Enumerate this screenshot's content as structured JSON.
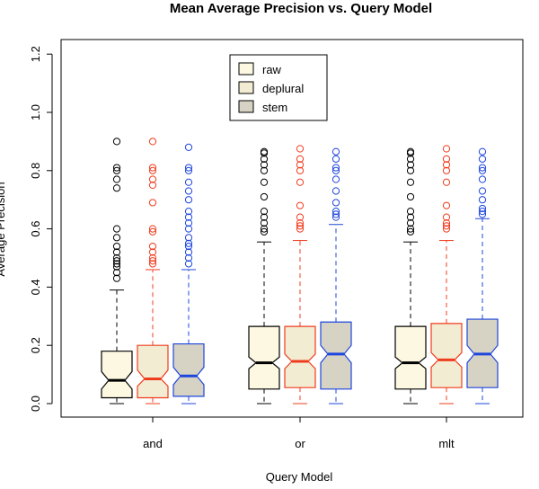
{
  "chart_data": {
    "type": "boxplot",
    "title": "Mean Average Precision vs. Query Model",
    "xlabel": "Query Model",
    "ylabel": "Average Precision",
    "ylim": [
      -0.02,
      1.25
    ],
    "yticks": [
      0.0,
      0.2,
      0.4,
      0.6,
      0.8,
      1.0,
      1.2
    ],
    "ytick_labels": [
      "0.0",
      "0.2",
      "0.4",
      "0.6",
      "0.8",
      "1.0",
      "1.2"
    ],
    "categories": [
      "and",
      "or",
      "mlt"
    ],
    "notched": true,
    "legend": {
      "placement": "top-center",
      "entries": [
        "raw",
        "deplural",
        "stem"
      ]
    },
    "series": [
      {
        "name": "raw",
        "fill": "#fdf8e1",
        "border": "#000000",
        "boxes": [
          {
            "min": 0.0,
            "q1": 0.02,
            "median": 0.08,
            "q3": 0.18,
            "whisker_high": 0.39,
            "notch_low": 0.05,
            "notch_high": 0.11,
            "outliers": [
              0.43,
              0.45,
              0.47,
              0.48,
              0.49,
              0.5,
              0.52,
              0.54,
              0.57,
              0.6,
              0.74,
              0.77,
              0.8,
              0.81,
              0.9
            ]
          },
          {
            "min": 0.0,
            "q1": 0.05,
            "median": 0.14,
            "q3": 0.265,
            "whisker_high": 0.555,
            "notch_low": 0.12,
            "notch_high": 0.16,
            "outliers": [
              0.59,
              0.6,
              0.62,
              0.64,
              0.66,
              0.71,
              0.76,
              0.8,
              0.82,
              0.84,
              0.86,
              0.865
            ]
          },
          {
            "min": 0.0,
            "q1": 0.05,
            "median": 0.14,
            "q3": 0.265,
            "whisker_high": 0.555,
            "notch_low": 0.12,
            "notch_high": 0.16,
            "outliers": [
              0.59,
              0.6,
              0.62,
              0.64,
              0.66,
              0.71,
              0.76,
              0.8,
              0.82,
              0.84,
              0.86,
              0.865
            ]
          }
        ]
      },
      {
        "name": "deplural",
        "fill": "#f2ecd2",
        "border": "#f03c1e",
        "boxes": [
          {
            "min": 0.0,
            "q1": 0.02,
            "median": 0.085,
            "q3": 0.2,
            "whisker_high": 0.46,
            "notch_low": 0.06,
            "notch_high": 0.115,
            "outliers": [
              0.48,
              0.49,
              0.5,
              0.52,
              0.54,
              0.59,
              0.6,
              0.69,
              0.75,
              0.77,
              0.8,
              0.81,
              0.9
            ]
          },
          {
            "min": 0.0,
            "q1": 0.055,
            "median": 0.145,
            "q3": 0.265,
            "whisker_high": 0.56,
            "notch_low": 0.12,
            "notch_high": 0.17,
            "outliers": [
              0.6,
              0.61,
              0.62,
              0.64,
              0.68,
              0.76,
              0.8,
              0.82,
              0.84,
              0.875
            ]
          },
          {
            "min": 0.0,
            "q1": 0.055,
            "median": 0.15,
            "q3": 0.275,
            "whisker_high": 0.56,
            "notch_low": 0.125,
            "notch_high": 0.175,
            "outliers": [
              0.6,
              0.61,
              0.62,
              0.64,
              0.68,
              0.76,
              0.8,
              0.82,
              0.84,
              0.875
            ]
          }
        ]
      },
      {
        "name": "stem",
        "fill": "#d6d2c4",
        "border": "#1e46dc",
        "boxes": [
          {
            "min": 0.0,
            "q1": 0.025,
            "median": 0.095,
            "q3": 0.205,
            "whisker_high": 0.46,
            "notch_low": 0.065,
            "notch_high": 0.125,
            "outliers": [
              0.48,
              0.5,
              0.52,
              0.54,
              0.55,
              0.57,
              0.6,
              0.62,
              0.64,
              0.66,
              0.7,
              0.73,
              0.76,
              0.8,
              0.81,
              0.88
            ]
          },
          {
            "min": 0.0,
            "q1": 0.05,
            "median": 0.17,
            "q3": 0.28,
            "whisker_high": 0.615,
            "notch_low": 0.14,
            "notch_high": 0.2,
            "outliers": [
              0.64,
              0.65,
              0.66,
              0.69,
              0.73,
              0.77,
              0.8,
              0.81,
              0.84,
              0.865
            ]
          },
          {
            "min": 0.0,
            "q1": 0.055,
            "median": 0.17,
            "q3": 0.29,
            "whisker_high": 0.635,
            "notch_low": 0.14,
            "notch_high": 0.2,
            "outliers": [
              0.65,
              0.66,
              0.67,
              0.7,
              0.73,
              0.77,
              0.8,
              0.81,
              0.84,
              0.865
            ]
          }
        ]
      }
    ]
  }
}
